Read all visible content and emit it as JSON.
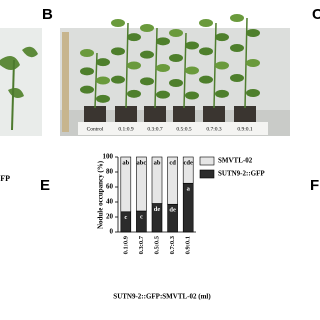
{
  "panel_labels": {
    "b": "B",
    "c": "C",
    "e": "E",
    "f": "F"
  },
  "left_fragment": "GFP",
  "photo": {
    "pot_labels": [
      "Control",
      "0.1:0.9",
      "0.3:0.7",
      "0.5:0.5",
      "0.7:0.3",
      "0.9:0.1"
    ]
  },
  "chart_data": {
    "type": "stacked-bar",
    "y_label": "Nodule occupancy (%)",
    "x_label": "SUTN9-2::GFP:SMVTL-02 (ml)",
    "categories": [
      "0.1:0.9",
      "0.3:0.7",
      "0.5:0.5",
      "0.7:0.3",
      "0.9:0.1"
    ],
    "series": [
      {
        "name": "SUTN9-2::GFP",
        "color": "#2b2b2b",
        "values": [
          27,
          28,
          38,
          37,
          65
        ],
        "letters": [
          "c",
          "c",
          "de",
          "de",
          "a"
        ]
      },
      {
        "name": "SMVTL-02",
        "color": "#e6e6e6",
        "values": [
          73,
          72,
          62,
          63,
          35
        ],
        "letters": [
          "ab",
          "abc",
          "ab",
          "cd",
          "cde"
        ]
      }
    ],
    "ylim": [
      0,
      100
    ],
    "yticks": [
      0,
      20,
      40,
      60,
      80,
      100
    ]
  }
}
